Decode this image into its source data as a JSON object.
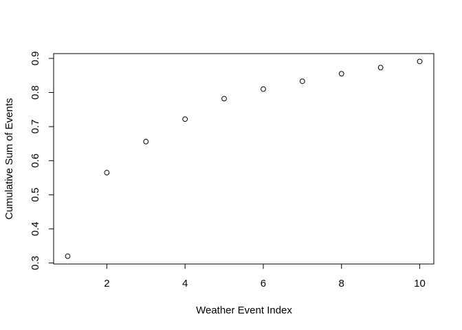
{
  "chart_data": {
    "type": "scatter",
    "title": "",
    "xlabel": "Weather Event Index",
    "ylabel": "Cumulative Sum of Events",
    "x": [
      1,
      2,
      3,
      4,
      5,
      6,
      7,
      8,
      9,
      10
    ],
    "y": [
      0.32,
      0.565,
      0.656,
      0.722,
      0.782,
      0.81,
      0.833,
      0.855,
      0.873,
      0.891
    ],
    "xlim": [
      0.64,
      10.36
    ],
    "ylim": [
      0.297,
      0.914
    ],
    "xticks": [
      2,
      4,
      6,
      8,
      10
    ],
    "xtick_labels": [
      "2",
      "4",
      "6",
      "8",
      "10"
    ],
    "yticks": [
      0.3,
      0.4,
      0.5,
      0.6,
      0.7,
      0.8,
      0.9
    ],
    "ytick_labels": [
      "0.3",
      "0.4",
      "0.5",
      "0.6",
      "0.7",
      "0.8",
      "0.9"
    ],
    "grid": false,
    "legend": "none",
    "marker": "open-circle",
    "colors": {
      "marker": "#000000",
      "axes": "#000000",
      "background": "#ffffff"
    }
  }
}
